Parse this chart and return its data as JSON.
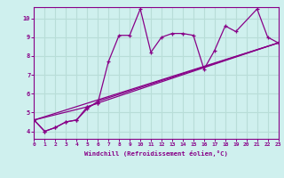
{
  "xlabel": "Windchill (Refroidissement éolien,°C)",
  "background_color": "#cff0ee",
  "grid_color": "#b8ddd8",
  "line_color": "#880088",
  "xlim": [
    0,
    23
  ],
  "ylim": [
    3.6,
    10.6
  ],
  "xticks": [
    0,
    1,
    2,
    3,
    4,
    5,
    6,
    7,
    8,
    9,
    10,
    11,
    12,
    13,
    14,
    15,
    16,
    17,
    18,
    19,
    20,
    21,
    22,
    23
  ],
  "yticks": [
    4,
    5,
    6,
    7,
    8,
    9,
    10
  ],
  "series1_x": [
    0,
    1,
    2,
    3,
    4,
    5,
    6,
    7,
    8,
    9,
    10,
    11,
    12,
    13,
    14,
    15,
    16,
    17,
    18,
    19,
    21,
    22,
    23
  ],
  "series1_y": [
    4.6,
    4.0,
    4.2,
    4.5,
    4.6,
    5.3,
    5.5,
    7.7,
    9.1,
    9.1,
    10.5,
    8.2,
    9.0,
    9.2,
    9.2,
    9.1,
    7.3,
    8.3,
    9.6,
    9.3,
    10.5,
    9.0,
    8.7
  ],
  "series2_x": [
    0,
    1,
    2,
    3,
    4,
    5,
    6,
    23
  ],
  "series2_y": [
    4.6,
    4.0,
    4.2,
    4.5,
    4.6,
    5.2,
    5.6,
    8.7
  ],
  "series3_x": [
    0,
    5,
    6,
    23
  ],
  "series3_y": [
    4.6,
    5.3,
    5.5,
    8.7
  ],
  "series4_x": [
    0,
    23
  ],
  "series4_y": [
    4.6,
    8.7
  ]
}
